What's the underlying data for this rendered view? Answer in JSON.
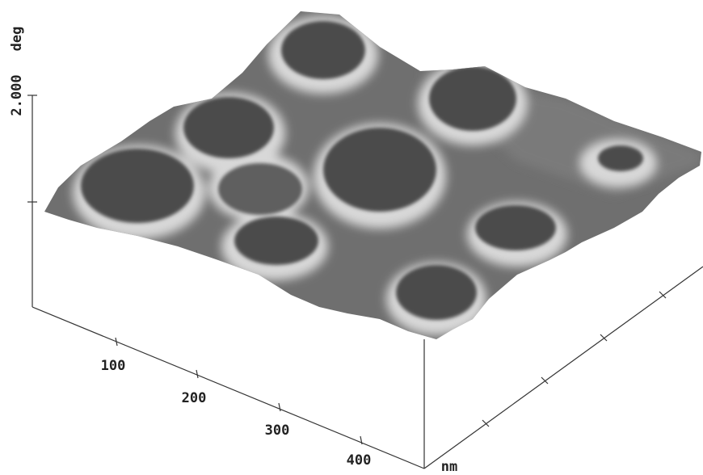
{
  "axes": {
    "z_unit": "deg",
    "z_tick": "2.000",
    "x_ticks": [
      "100",
      "200",
      "300",
      "400"
    ],
    "x_unit": "nm"
  }
}
